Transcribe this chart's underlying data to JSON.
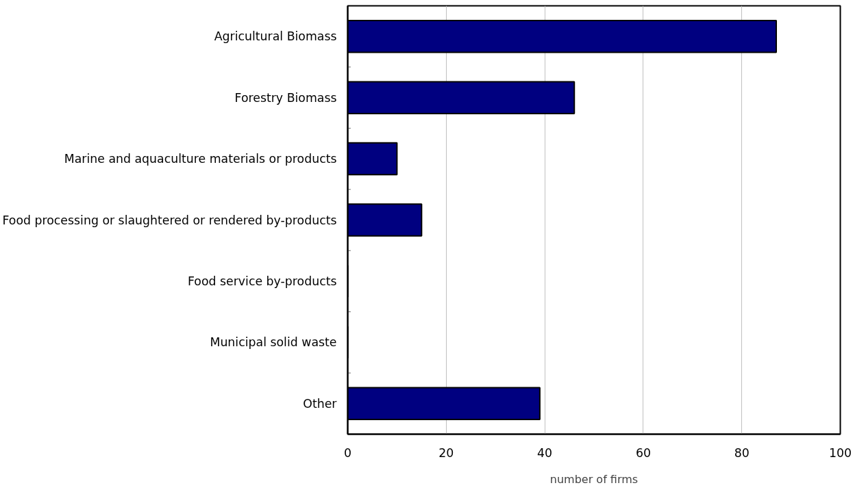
{
  "chart_data": {
    "type": "bar",
    "orientation": "horizontal",
    "xlabel": "number of firms",
    "categories": [
      "Agricultural Biomass",
      "Forestry Biomass",
      "Marine and aquaculture materials or products",
      "Food processing or slaughtered or rendered by-products",
      "Food service by-products",
      "Municipal solid waste",
      "Other"
    ],
    "values": [
      87,
      46,
      10,
      15,
      0,
      0,
      39
    ],
    "color": "#000080",
    "xlim": [
      0,
      100
    ],
    "xticks": [
      0,
      20,
      40,
      60,
      80,
      100
    ],
    "grid": "x"
  }
}
